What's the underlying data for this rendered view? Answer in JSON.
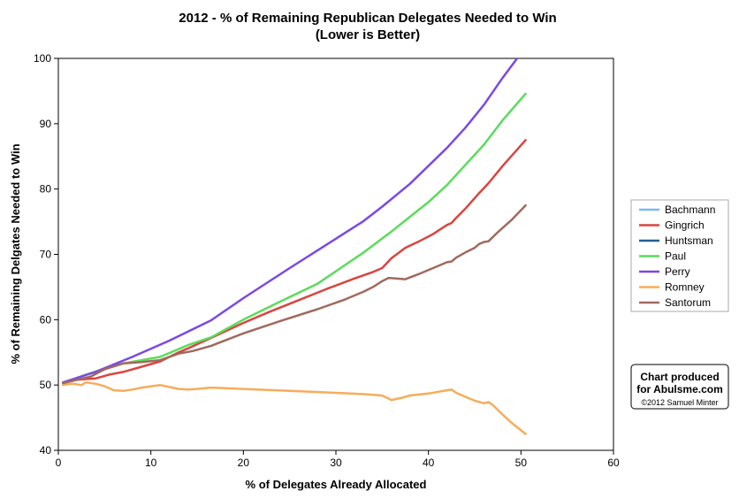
{
  "chart_data": {
    "type": "line",
    "title": "2012 - % of Remaining Republican Delegates Needed to Win",
    "subtitle": "(Lower is Better)",
    "xlabel": "% of Delegates Already Allocated",
    "ylabel": "% of Remaining Delgates Needed to Win",
    "xlim": [
      0,
      60
    ],
    "ylim": [
      40,
      100
    ],
    "x_ticks": [
      0,
      10,
      20,
      30,
      40,
      50,
      60
    ],
    "y_ticks": [
      40,
      50,
      60,
      70,
      80,
      90,
      100
    ],
    "grid": false,
    "legend_position": "right",
    "series": [
      {
        "name": "Bachmann",
        "color": "#7ab8f5",
        "points": []
      },
      {
        "name": "Gingrich",
        "color": "#d9453f",
        "points": [
          [
            0.5,
            50.3
          ],
          [
            2,
            50.8
          ],
          [
            4,
            51.0
          ],
          [
            5.5,
            51.6
          ],
          [
            7,
            52.0
          ],
          [
            8.5,
            52.6
          ],
          [
            10,
            53.2
          ],
          [
            11,
            53.6
          ],
          [
            12,
            54.3
          ],
          [
            13,
            55.0
          ],
          [
            14,
            55.6
          ],
          [
            16.5,
            57.2
          ],
          [
            20,
            59.5
          ],
          [
            23,
            61.3
          ],
          [
            26,
            63.0
          ],
          [
            29,
            64.7
          ],
          [
            32,
            66.3
          ],
          [
            34,
            67.3
          ],
          [
            35,
            67.9
          ],
          [
            36,
            69.4
          ],
          [
            37.5,
            71.0
          ],
          [
            39,
            72.0
          ],
          [
            40.5,
            73.1
          ],
          [
            42,
            74.5
          ],
          [
            42.5,
            74.8
          ],
          [
            43,
            75.6
          ],
          [
            44,
            77.0
          ],
          [
            45.5,
            79.4
          ],
          [
            46.5,
            80.9
          ],
          [
            48,
            83.5
          ],
          [
            50.5,
            87.5
          ]
        ]
      },
      {
        "name": "Huntsman",
        "color": "#215d96",
        "points": []
      },
      {
        "name": "Paul",
        "color": "#5bdc5b",
        "points": [
          [
            0.5,
            50.3
          ],
          [
            3,
            51.6
          ],
          [
            5,
            52.5
          ],
          [
            7,
            53.3
          ],
          [
            9,
            53.8
          ],
          [
            11,
            54.3
          ],
          [
            12.5,
            55.2
          ],
          [
            14,
            56.1
          ],
          [
            16.5,
            57.3
          ],
          [
            20,
            60.0
          ],
          [
            24,
            62.8
          ],
          [
            28,
            65.5
          ],
          [
            33,
            70.3
          ],
          [
            36,
            73.5
          ],
          [
            40,
            78.0
          ],
          [
            42,
            80.6
          ],
          [
            44,
            83.7
          ],
          [
            46,
            86.8
          ],
          [
            48,
            90.5
          ],
          [
            50.5,
            94.6
          ]
        ]
      },
      {
        "name": "Perry",
        "color": "#7a49e6",
        "points": [
          [
            0.5,
            50.4
          ],
          [
            4,
            52.0
          ],
          [
            8,
            54.3
          ],
          [
            12,
            56.8
          ],
          [
            16.5,
            59.9
          ],
          [
            20,
            63.3
          ],
          [
            25,
            67.9
          ],
          [
            30,
            72.4
          ],
          [
            33,
            75.1
          ],
          [
            35,
            77.3
          ],
          [
            38,
            80.8
          ],
          [
            42,
            86.3
          ],
          [
            44,
            89.4
          ],
          [
            46,
            92.9
          ],
          [
            48,
            97.0
          ],
          [
            49.9,
            100.6
          ]
        ]
      },
      {
        "name": "Romney",
        "color": "#f5ad5a",
        "points": [
          [
            0.5,
            50.0
          ],
          [
            1.5,
            50.2
          ],
          [
            2.5,
            50.0
          ],
          [
            3,
            50.4
          ],
          [
            4,
            50.2
          ],
          [
            5,
            49.8
          ],
          [
            6,
            49.2
          ],
          [
            7,
            49.1
          ],
          [
            8,
            49.3
          ],
          [
            9,
            49.6
          ],
          [
            10,
            49.8
          ],
          [
            11,
            50.0
          ],
          [
            12,
            49.7
          ],
          [
            13,
            49.4
          ],
          [
            14,
            49.3
          ],
          [
            15,
            49.4
          ],
          [
            16.5,
            49.6
          ],
          [
            20,
            49.4
          ],
          [
            25,
            49.1
          ],
          [
            30,
            48.8
          ],
          [
            33,
            48.6
          ],
          [
            34,
            48.5
          ],
          [
            35,
            48.4
          ],
          [
            36,
            47.7
          ],
          [
            37,
            48.0
          ],
          [
            38,
            48.4
          ],
          [
            40,
            48.7
          ],
          [
            42,
            49.2
          ],
          [
            42.5,
            49.3
          ],
          [
            43,
            48.8
          ],
          [
            44,
            48.2
          ],
          [
            45,
            47.6
          ],
          [
            46,
            47.2
          ],
          [
            46.5,
            47.4
          ],
          [
            47,
            46.9
          ],
          [
            48,
            45.5
          ],
          [
            49,
            44.2
          ],
          [
            50.5,
            42.5
          ]
        ]
      },
      {
        "name": "Santorum",
        "color": "#a06a5e",
        "points": [
          [
            0.5,
            50.3
          ],
          [
            2,
            50.8
          ],
          [
            3.5,
            51.3
          ],
          [
            5,
            52.4
          ],
          [
            7,
            53.3
          ],
          [
            9,
            53.5
          ],
          [
            11,
            53.8
          ],
          [
            12,
            54.3
          ],
          [
            13,
            54.8
          ],
          [
            14.5,
            55.2
          ],
          [
            16.5,
            56.0
          ],
          [
            20,
            57.9
          ],
          [
            24,
            59.8
          ],
          [
            28,
            61.6
          ],
          [
            31,
            63.1
          ],
          [
            33,
            64.3
          ],
          [
            34,
            65.0
          ],
          [
            35,
            65.9
          ],
          [
            35.7,
            66.4
          ],
          [
            36.5,
            66.3
          ],
          [
            37.5,
            66.2
          ],
          [
            39,
            67.0
          ],
          [
            40.5,
            67.9
          ],
          [
            42,
            68.8
          ],
          [
            42.5,
            68.9
          ],
          [
            43,
            69.5
          ],
          [
            44,
            70.3
          ],
          [
            45,
            71.0
          ],
          [
            45.5,
            71.6
          ],
          [
            46,
            71.9
          ],
          [
            46.5,
            72.0
          ],
          [
            47.5,
            73.4
          ],
          [
            49,
            75.3
          ],
          [
            50.5,
            77.5
          ]
        ]
      }
    ]
  },
  "credit": {
    "line1": "Chart produced",
    "line2": "for Abulsme.com",
    "line3": "©2012 Samuel Minter"
  }
}
